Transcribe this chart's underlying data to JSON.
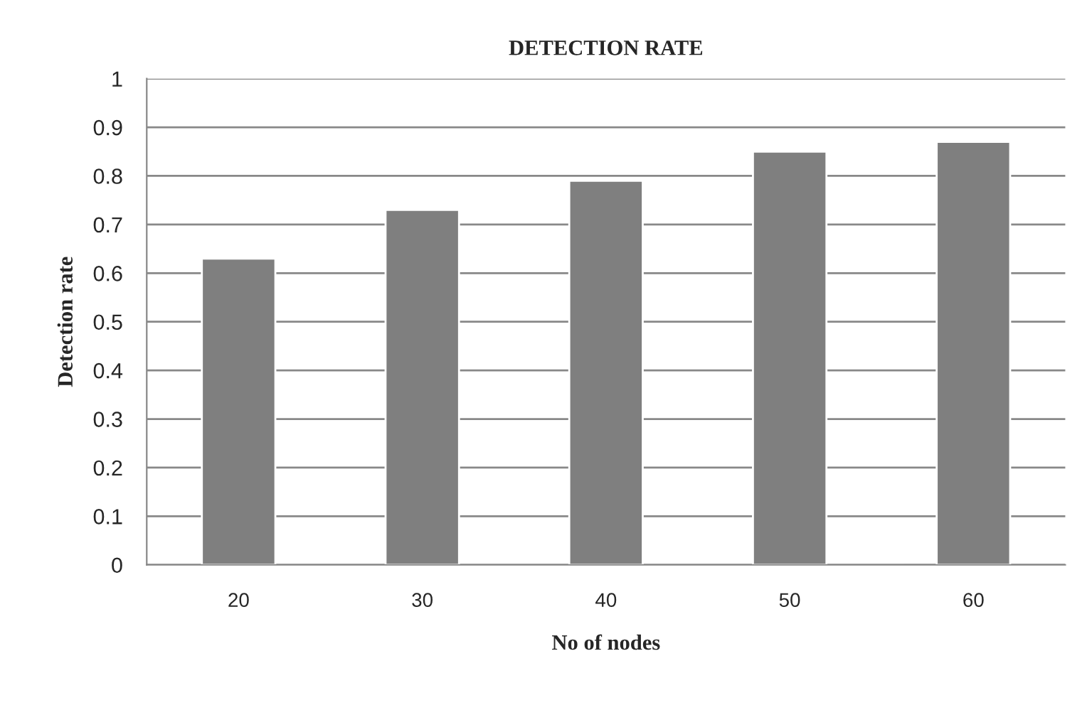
{
  "chart_data": {
    "type": "bar",
    "title": "DETECTION RATE",
    "xlabel": "No of nodes",
    "ylabel": "Detection rate",
    "categories": [
      "20",
      "30",
      "40",
      "50",
      "60"
    ],
    "values": [
      0.63,
      0.73,
      0.79,
      0.85,
      0.87
    ],
    "color": "#7f7f7f",
    "ylim": [
      0,
      1
    ],
    "yticks": [
      0,
      0.1,
      0.2,
      0.3,
      0.4,
      0.5,
      0.6,
      0.7,
      0.8,
      0.9,
      1
    ],
    "grid": "y",
    "legend": false
  }
}
